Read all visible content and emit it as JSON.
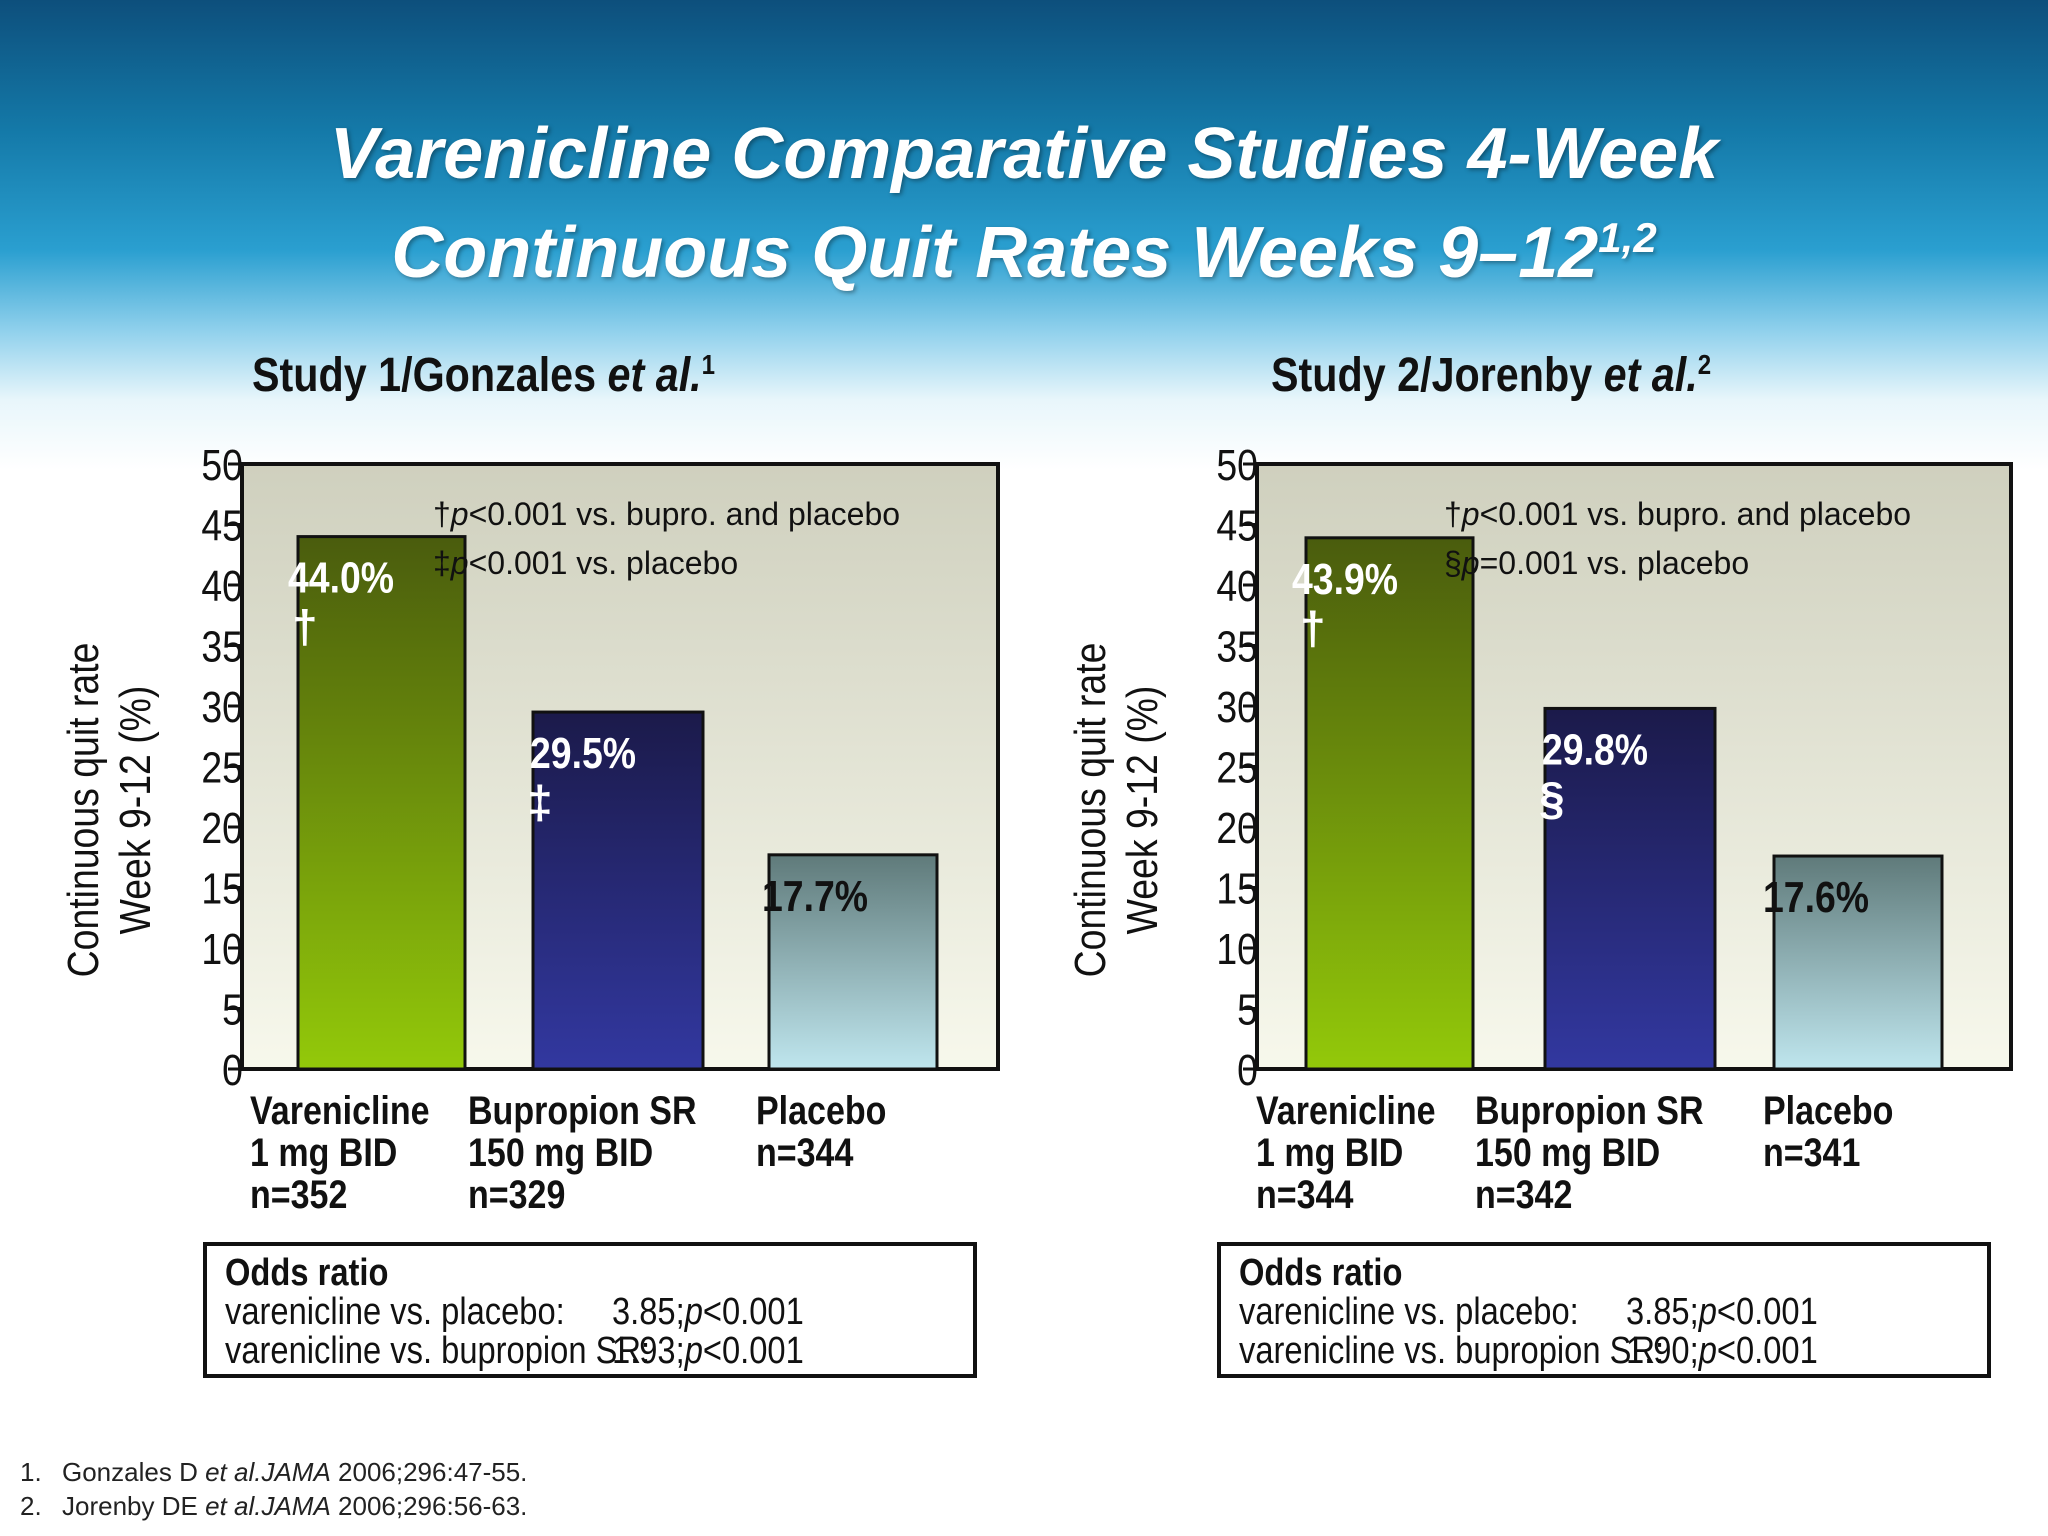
{
  "title": {
    "line1": "Varenicline Comparative Studies 4-Week",
    "line2": "Continuous Quit Rates Weeks 9–12",
    "sup": "1,2"
  },
  "charts": [
    {
      "heading_main": "Study 1/Gonzales ",
      "heading_italic": "et al.",
      "heading_sup": "1",
      "ylabel_line1": "Continuous quit rate",
      "ylabel_line2": "Week 9-12 (%)",
      "legend": [
        {
          "sym": "†",
          "p": "p",
          "rest": "<0.001 vs. bupro. and placebo"
        },
        {
          "sym": "‡",
          "p": "p",
          "rest": "<0.001 vs. placebo"
        }
      ],
      "categories": [
        {
          "l1": "Varenicline",
          "l2": "1 mg BID",
          "l3": "n=352"
        },
        {
          "l1": "Bupropion SR",
          "l2": "150 mg BID",
          "l3": "n=329"
        },
        {
          "l1": "Placebo",
          "l2": "n=344",
          "l3": ""
        }
      ],
      "odds": {
        "header": "Odds ratio",
        "rows": [
          {
            "k": "varenicline vs. placebo:",
            "v": "3.85; ",
            "pi": "p",
            "pv": "<0.001"
          },
          {
            "k": "varenicline vs. bupropion SR:",
            "v": "1.93; ",
            "pi": "p",
            "pv": "<0.001"
          }
        ]
      }
    },
    {
      "heading_main": "Study 2/Jorenby ",
      "heading_italic": "et al.",
      "heading_sup": "2",
      "ylabel_line1": "Continuous quit rate",
      "ylabel_line2": "Week 9-12 (%)",
      "legend": [
        {
          "sym": "†",
          "p": "p",
          "rest": "<0.001 vs. bupro. and placebo"
        },
        {
          "sym": "§",
          "p": "p",
          "rest": "=0.001 vs. placebo"
        }
      ],
      "categories": [
        {
          "l1": "Varenicline",
          "l2": "1 mg BID",
          "l3": "n=344"
        },
        {
          "l1": "Bupropion SR",
          "l2": "150 mg BID",
          "l3": "n=342"
        },
        {
          "l1": "Placebo",
          "l2": "n=341",
          "l3": ""
        }
      ],
      "odds": {
        "header": "Odds ratio",
        "rows": [
          {
            "k": "varenicline vs. placebo:",
            "v": "3.85; ",
            "pi": "p",
            "pv": "<0.001"
          },
          {
            "k": "varenicline vs. bupropion SR:",
            "v": "1.90; ",
            "pi": "p",
            "pv": "<0.001"
          }
        ]
      }
    }
  ],
  "chart_data": [
    {
      "type": "bar",
      "categories": [
        "Varenicline 1 mg BID n=352",
        "Bupropion SR 150 mg BID n=329",
        "Placebo n=344"
      ],
      "values": [
        44.0,
        29.5,
        17.7
      ],
      "value_labels": [
        "44.0%",
        "29.5%",
        "17.7%"
      ],
      "markers": [
        "†",
        "‡",
        ""
      ],
      "title": "Study 1/Gonzales et al.",
      "xlabel": "",
      "ylabel": "Continuous quit rate Week 9-12 (%)",
      "ylim": [
        0,
        50
      ],
      "yticks": [
        0,
        5,
        10,
        15,
        20,
        25,
        30,
        35,
        40,
        45,
        50
      ],
      "grid": false,
      "colors": [
        "#7fb515",
        "#2b2f8a",
        "#a4cfd6"
      ]
    },
    {
      "type": "bar",
      "categories": [
        "Varenicline 1 mg BID n=344",
        "Bupropion SR 150 mg BID n=342",
        "Placebo n=341"
      ],
      "values": [
        43.9,
        29.8,
        17.6
      ],
      "value_labels": [
        "43.9%",
        "29.8%",
        "17.6%"
      ],
      "markers": [
        "†",
        "§",
        ""
      ],
      "title": "Study 2/Jorenby et al.",
      "xlabel": "",
      "ylabel": "Continuous quit rate Week 9-12 (%)",
      "ylim": [
        0,
        50
      ],
      "yticks": [
        0,
        5,
        10,
        15,
        20,
        25,
        30,
        35,
        40,
        45,
        50
      ],
      "grid": false,
      "colors": [
        "#7fb515",
        "#2b2f8a",
        "#a4cfd6"
      ]
    }
  ],
  "references": [
    {
      "n": "1.",
      "a": "Gonzales D ",
      "i": "et al.JAMA",
      "b": " 2006;296:47-55."
    },
    {
      "n": "2.",
      "a": "Jorenby DE ",
      "i": "et al.JAMA",
      "b": " 2006;296:56-63."
    }
  ]
}
